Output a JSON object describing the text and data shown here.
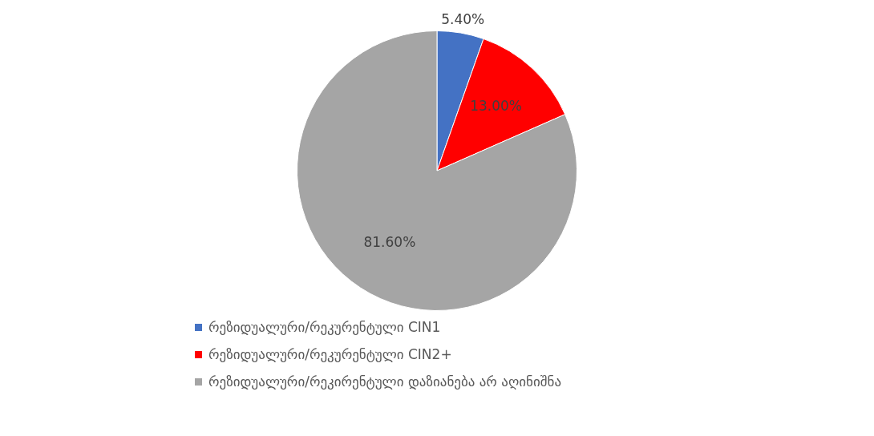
{
  "chart_data": {
    "type": "pie",
    "categories": [
      "რეზიდუალური/რეკურენტული CIN1",
      "რეზიდუალური/რეკურენტული CIN2+",
      "რეზიდუალური/რეკირენტული დაზიანება არ აღინიშნა"
    ],
    "values": [
      5.4,
      13.0,
      81.6
    ],
    "colors": [
      "#4472c4",
      "#ff0000",
      "#a5a5a5"
    ],
    "value_labels": [
      "5.40%",
      "13.00%",
      "81.60%"
    ],
    "legend": "bottom"
  }
}
